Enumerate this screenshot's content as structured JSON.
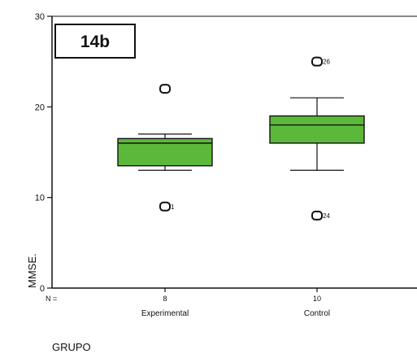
{
  "chart_data": {
    "type": "boxplot",
    "panel_label": "14b",
    "ylabel": "MMSE.",
    "xlabel": "GRUPO",
    "n_label": "N =",
    "ylim": [
      0,
      30
    ],
    "yticks": [
      0,
      10,
      20,
      30
    ],
    "grid": false,
    "box_color": "#5cb83a",
    "groups": [
      {
        "name": "Experimental",
        "n": "8",
        "whisker_low": 13,
        "q1": 13.5,
        "median": 16,
        "q3": 16.5,
        "whisker_high": 17,
        "outliers": [
          {
            "value": 22,
            "label": ""
          },
          {
            "value": 9,
            "label": "1"
          }
        ]
      },
      {
        "name": "Control",
        "n": "10",
        "whisker_low": 13,
        "q1": 16,
        "median": 18,
        "q3": 19,
        "whisker_high": 21,
        "outliers": [
          {
            "value": 25,
            "label": "26"
          },
          {
            "value": 8,
            "label": "24"
          }
        ]
      }
    ]
  }
}
